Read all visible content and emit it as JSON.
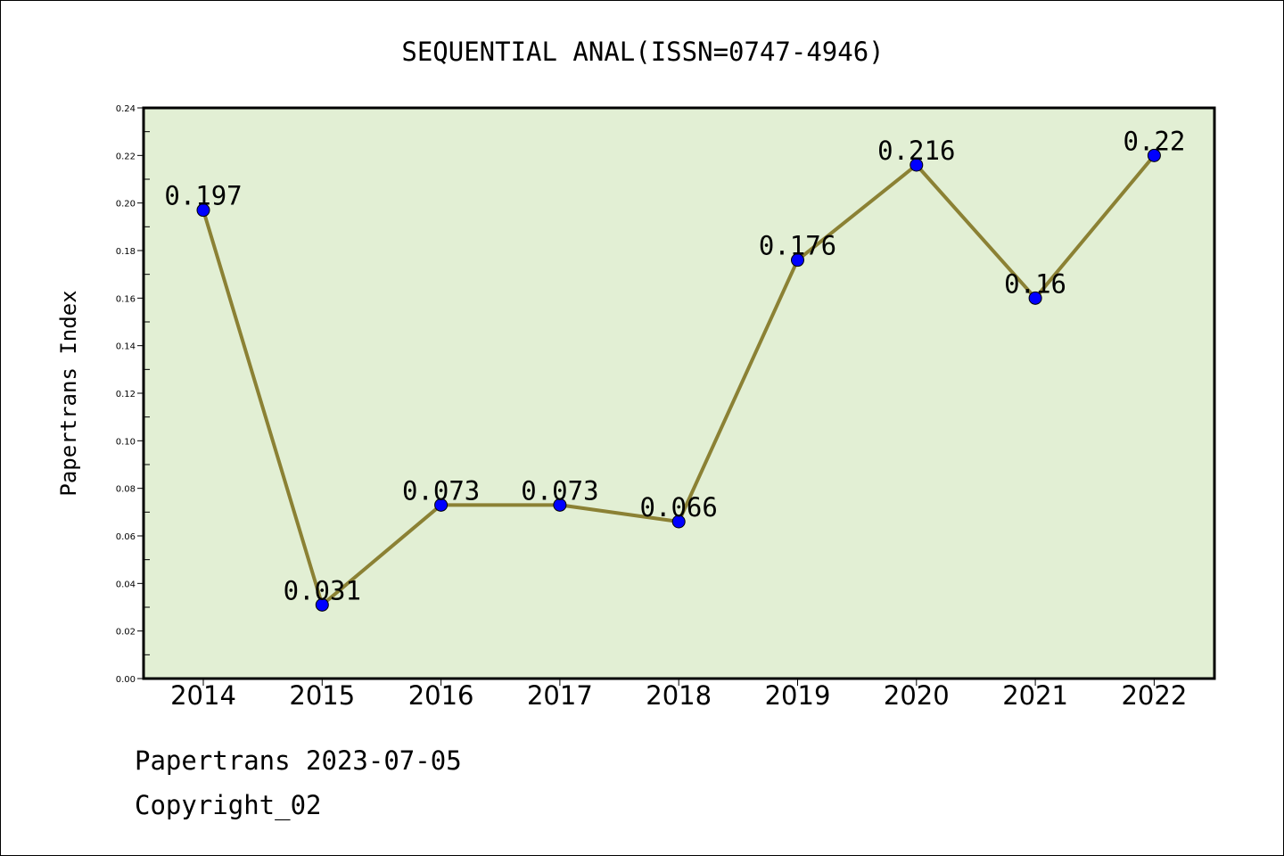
{
  "chart_data": {
    "type": "line",
    "title": "SEQUENTIAL ANAL(ISSN=0747-4946)",
    "xlabel": "",
    "ylabel": "Papertrans Index",
    "categories": [
      "2014",
      "2015",
      "2016",
      "2017",
      "2018",
      "2019",
      "2020",
      "2021",
      "2022"
    ],
    "values": [
      0.197,
      0.031,
      0.073,
      0.073,
      0.066,
      0.176,
      0.216,
      0.16,
      0.22
    ],
    "data_labels": [
      "0.197",
      "0.031",
      "0.073",
      "0.073",
      "0.066",
      "0.176",
      "0.216",
      "0.16",
      "0.22"
    ],
    "yticks": [
      "0.00",
      "0.02",
      "0.04",
      "0.06",
      "0.08",
      "0.10",
      "0.12",
      "0.14",
      "0.16",
      "0.18",
      "0.20",
      "0.22",
      "0.24"
    ],
    "ylim": [
      0,
      0.24
    ],
    "grid": false,
    "legend": "none",
    "colors": {
      "plot_background": "#e2efd4",
      "line": "#8b8134",
      "marker": "#0000ff",
      "axes": "#000000"
    }
  },
  "footer": {
    "line1": "Papertrans 2023-07-05",
    "line2": "Copyright_02"
  }
}
